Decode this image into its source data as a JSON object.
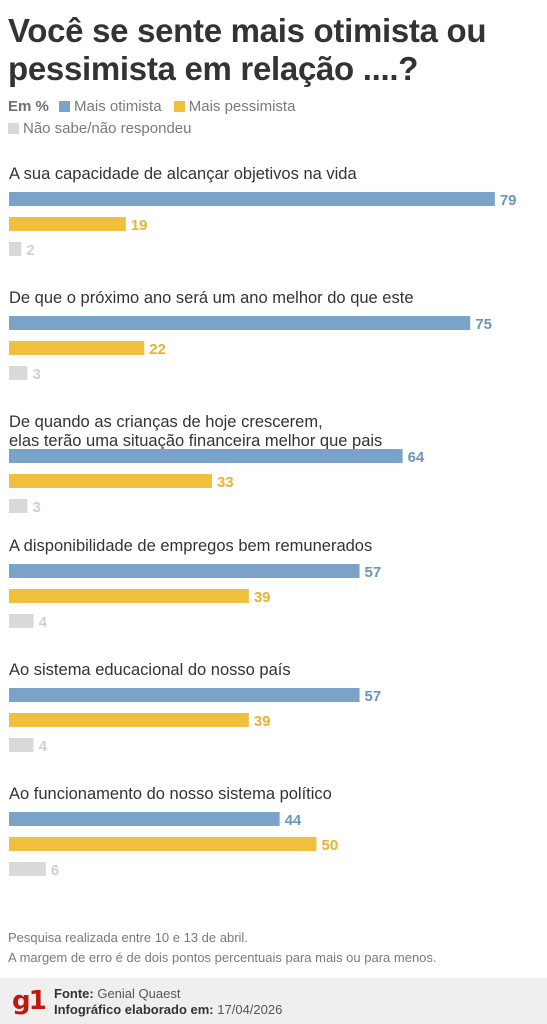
{
  "title": "Você se sente mais otimista ou pessimista em relação ....?",
  "legend": {
    "unit": "Em %",
    "items": [
      {
        "label": "Mais otimista",
        "color": "#7ba3c7"
      },
      {
        "label": "Mais pessimista",
        "color": "#f0bf3c"
      },
      {
        "label": "Não sabe/não respondeu",
        "color": "#d9d9d9"
      }
    ]
  },
  "chart_data": {
    "type": "bar",
    "orientation": "horizontal",
    "categories": [
      "A sua capacidade de alcançar objetivos na vida",
      "De que o próximo ano será um ano melhor do que este",
      "De quando as crianças de hoje crescerem, elas terão uma situação financeira melhor que pais",
      "A disponibilidade de empregos bem remunerados",
      "Ao sistema educacional do nosso país",
      "Ao funcionamento do nosso sistema político"
    ],
    "series": [
      {
        "name": "Mais otimista",
        "color": "#7ba3c7",
        "values": [
          79,
          75,
          64,
          57,
          57,
          44
        ]
      },
      {
        "name": "Mais pessimista",
        "color": "#f0bf3c",
        "values": [
          19,
          22,
          33,
          39,
          39,
          50
        ]
      },
      {
        "name": "Não sabe/não respondeu",
        "color": "#d9d9d9",
        "values": [
          2,
          3,
          3,
          4,
          4,
          6
        ]
      }
    ],
    "label_colors": [
      "#6d94b8",
      "#e8b42e",
      "#d0d0d0"
    ],
    "xlim": [
      0,
      100
    ]
  },
  "footnote": {
    "line1": "Pesquisa realizada entre 10 e 13 de abril.",
    "line2": "A margem de erro é de dois pontos percentuais para mais ou para menos."
  },
  "footer": {
    "logo": "g1",
    "source_label": "Fonte:",
    "source": "Genial Quaest",
    "made_label": "Infográfico elaborado em:",
    "made_date": "17/04/2026"
  }
}
